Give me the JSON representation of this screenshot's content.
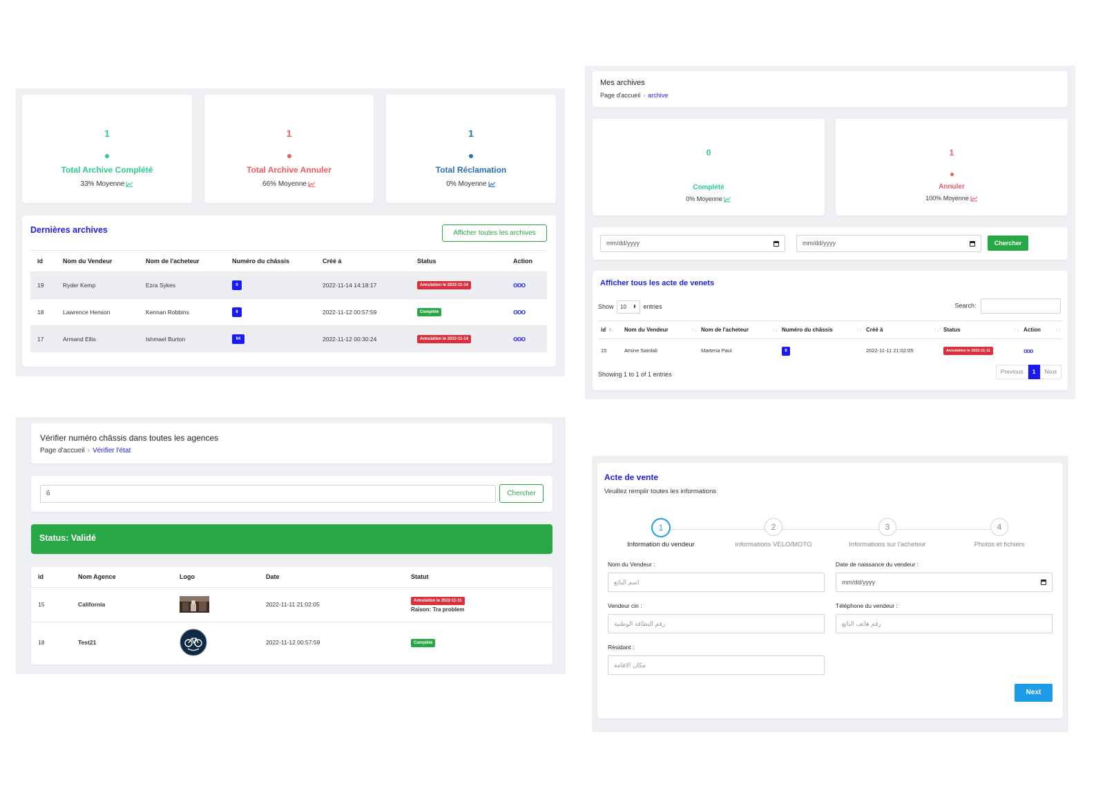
{
  "dashboard": {
    "stats": [
      {
        "value": "1",
        "label": "Total Archive Complété",
        "avg": "33% Moyenne",
        "color": "#2ecc8a"
      },
      {
        "value": "1",
        "label": "Total Archive Annuler",
        "avg": "66% Moyenne",
        "color": "#ef5b63"
      },
      {
        "value": "1",
        "label": "Total Réclamation",
        "avg": "0% Moyenne",
        "color": "#2a6fb0"
      }
    ],
    "latest": {
      "title": "Dernières archives",
      "show_all_button": "Afficher toutes les archives",
      "columns": [
        "id",
        "Nom du Vendeur",
        "Nom de l'acheteur",
        "Numéro du châssis",
        "Créé à",
        "Status",
        "Action"
      ],
      "rows": [
        {
          "id": "19",
          "seller": "Ryder Kemp",
          "buyer": "Ezra Sykes",
          "chassis": "0",
          "created": "2022-11-14 14:18:17",
          "status": "Annulation le 2022-11-14",
          "status_type": "red"
        },
        {
          "id": "18",
          "seller": "Lawrence Henson",
          "buyer": "Kennan Robbins",
          "chassis": "6",
          "created": "2022-11-12 00:57:59",
          "status": "Complété",
          "status_type": "green"
        },
        {
          "id": "17",
          "seller": "Armand Ellis",
          "buyer": "Ishmael Burton",
          "chassis": "94",
          "created": "2022-11-12 00:30:24",
          "status": "Annulation le 2022-11-14",
          "status_type": "red"
        }
      ]
    }
  },
  "archives": {
    "title": "Mes archives",
    "breadcrumb_home": "Page d'accueil",
    "breadcrumb_current": "archive",
    "stats": [
      {
        "value": "0",
        "label": "Complété",
        "avg": "0% Moyenne",
        "color": "#2ecc8a"
      },
      {
        "value": "1",
        "label": "Annuler",
        "avg": "100% Moyenne",
        "color": "#ef5b63"
      }
    ],
    "date_placeholder_1": "mm/dd/yyyy",
    "date_placeholder_2": "mm/dd/yyyy",
    "search_button": "Chercher",
    "list_title": "Afficher tous les acte de venets",
    "show_label": "Show",
    "entries_value": "10",
    "entries_label": "entries",
    "search_label": "Search:",
    "columns": [
      "id",
      "Nom du Vendeur",
      "Nom de l'acheteur",
      "Numéro du châssis",
      "Créé à",
      "Status",
      "Action"
    ],
    "rows": [
      {
        "id": "15",
        "seller": "Amine Samlali",
        "buyer": "Martena Paul",
        "chassis": "6",
        "created": "2022-11-11 21:02:05",
        "status": "Annulation le 2022-11-11"
      }
    ],
    "showing": "Showing 1 to 1 of 1 entries",
    "prev": "Previous",
    "page": "1",
    "next": "Next"
  },
  "verify": {
    "title": "Vérifier numéro châssis dans toutes les agences",
    "breadcrumb_home": "Page d'accueil",
    "breadcrumb_current": "Vérifier l'état",
    "input_value": "6",
    "search_button": "Chercher",
    "status_banner": "Status: Validé",
    "columns": [
      "id",
      "Nom Agence",
      "Logo",
      "Date",
      "Statut"
    ],
    "rows": [
      {
        "id": "15",
        "agency": "California",
        "date": "2022-11-11 21:02:05",
        "status": "Annulation le 2022-11-11",
        "reason": "Raison: Tra problem"
      },
      {
        "id": "18",
        "agency": "Test21",
        "date": "2022-11-12 00:57:59",
        "status": "Complété"
      }
    ]
  },
  "sale": {
    "title": "Acte de vente",
    "subtitle": "Veuillez remplir toutes les informations",
    "steps": [
      {
        "num": "1",
        "label": "Information du vendeur"
      },
      {
        "num": "2",
        "label": "informations VELO/MOTO"
      },
      {
        "num": "3",
        "label": "Informations sur l'acheteur"
      },
      {
        "num": "4",
        "label": "Photos et fichiers"
      }
    ],
    "fields": {
      "seller_name_label": "Nom du Vendeur :",
      "seller_name_placeholder": "اسم البائع",
      "birth_label": "Date de naissance du vendeur :",
      "birth_placeholder": "mm/dd/yyyy",
      "cin_label": "Vendeur cin :",
      "cin_placeholder": "رقم البطاقة الوطنية",
      "phone_label": "Téléphone du vendeur :",
      "phone_placeholder": "رقم هاتف البائع",
      "resident_label": "Résidant :",
      "resident_placeholder": "مكان الاقامة"
    },
    "next_button": "Next"
  }
}
